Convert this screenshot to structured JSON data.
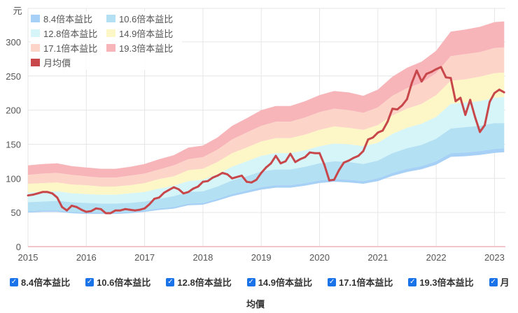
{
  "chart_data": {
    "type": "area",
    "y_unit": "元",
    "ylim": [
      0,
      350
    ],
    "yticks": [
      "0",
      "50",
      "100",
      "150",
      "200",
      "250",
      "300"
    ],
    "xticks": [
      "2015",
      "2016",
      "2017",
      "2018",
      "2019",
      "2020",
      "2021",
      "2022",
      "2023"
    ],
    "grid": true,
    "legend_position": "top-left",
    "band_dates": [
      "2015-01",
      "2015-04",
      "2015-07",
      "2015-10",
      "2016-01",
      "2016-04",
      "2016-07",
      "2016-10",
      "2017-01",
      "2017-04",
      "2017-07",
      "2017-10",
      "2018-01",
      "2018-04",
      "2018-07",
      "2018-10",
      "2019-01",
      "2019-04",
      "2019-07",
      "2019-10",
      "2020-01",
      "2020-04",
      "2020-07",
      "2020-10",
      "2021-01",
      "2021-04",
      "2021-07",
      "2021-10",
      "2022-01",
      "2022-04",
      "2022-07",
      "2022-10",
      "2023-01",
      "2023-03"
    ],
    "series": [
      {
        "name": "8.4倍本益比",
        "color": "#a6d0f5",
        "values": [
          52,
          53,
          53,
          51,
          50,
          50,
          50,
          51,
          53,
          56,
          58,
          63,
          64,
          70,
          77,
          82,
          87,
          90,
          90,
          93,
          97,
          99,
          98,
          96,
          100,
          108,
          114,
          118,
          125,
          137,
          138,
          140,
          143,
          144
        ]
      },
      {
        "name": "10.6倍本益比",
        "color": "#b3e0f2",
        "values": [
          65,
          66,
          67,
          65,
          64,
          63,
          63,
          64,
          66,
          70,
          74,
          80,
          81,
          88,
          97,
          103,
          110,
          113,
          113,
          117,
          122,
          125,
          124,
          121,
          126,
          137,
          144,
          149,
          158,
          173,
          175,
          177,
          181,
          181
        ]
      },
      {
        "name": "12.8倍本益比",
        "color": "#d5f5f8",
        "values": [
          79,
          80,
          81,
          78,
          77,
          76,
          76,
          78,
          80,
          85,
          89,
          96,
          98,
          106,
          117,
          125,
          133,
          137,
          137,
          141,
          147,
          151,
          150,
          147,
          152,
          165,
          174,
          180,
          190,
          209,
          211,
          213,
          218,
          219
        ]
      },
      {
        "name": "14.9倍本益比",
        "color": "#fdf6c6",
        "values": [
          92,
          93,
          94,
          91,
          90,
          88,
          88,
          90,
          93,
          99,
          103,
          112,
          114,
          124,
          137,
          145,
          154,
          159,
          159,
          164,
          171,
          176,
          174,
          171,
          178,
          192,
          202,
          209,
          222,
          243,
          245,
          249,
          254,
          255
        ]
      },
      {
        "name": "17.1倍本益比",
        "color": "#fcd4c8",
        "values": [
          105,
          107,
          108,
          105,
          103,
          101,
          101,
          104,
          107,
          113,
          119,
          128,
          131,
          142,
          157,
          167,
          177,
          183,
          183,
          189,
          197,
          202,
          200,
          196,
          204,
          221,
          232,
          240,
          254,
          279,
          282,
          285,
          291,
          292
        ]
      },
      {
        "name": "19.3倍本益比",
        "color": "#f7b4b9",
        "values": [
          119,
          121,
          122,
          118,
          116,
          114,
          114,
          117,
          121,
          128,
          134,
          145,
          148,
          160,
          177,
          188,
          200,
          206,
          206,
          213,
          222,
          228,
          226,
          221,
          230,
          249,
          262,
          271,
          287,
          315,
          318,
          322,
          329,
          330
        ]
      }
    ],
    "price": {
      "name": "月均價",
      "color": "#c8474a",
      "dates": [
        "2015-01",
        "2015-02",
        "2015-03",
        "2015-04",
        "2015-05",
        "2015-06",
        "2015-07",
        "2015-08",
        "2015-09",
        "2015-10",
        "2015-11",
        "2015-12",
        "2016-01",
        "2016-02",
        "2016-03",
        "2016-04",
        "2016-05",
        "2016-06",
        "2016-07",
        "2016-08",
        "2016-09",
        "2016-10",
        "2016-11",
        "2016-12",
        "2017-01",
        "2017-02",
        "2017-03",
        "2017-04",
        "2017-05",
        "2017-06",
        "2017-07",
        "2017-08",
        "2017-09",
        "2017-10",
        "2017-11",
        "2017-12",
        "2018-01",
        "2018-02",
        "2018-03",
        "2018-04",
        "2018-05",
        "2018-06",
        "2018-07",
        "2018-08",
        "2018-09",
        "2018-10",
        "2018-11",
        "2018-12",
        "2019-01",
        "2019-02",
        "2019-03",
        "2019-04",
        "2019-05",
        "2019-06",
        "2019-07",
        "2019-08",
        "2019-09",
        "2019-10",
        "2019-11",
        "2019-12",
        "2020-01",
        "2020-02",
        "2020-03",
        "2020-04",
        "2020-05",
        "2020-06",
        "2020-07",
        "2020-08",
        "2020-09",
        "2020-10",
        "2020-11",
        "2020-12",
        "2021-01",
        "2021-02",
        "2021-03",
        "2021-04",
        "2021-05",
        "2021-06",
        "2021-07",
        "2021-08",
        "2021-09",
        "2021-10",
        "2021-11",
        "2021-12",
        "2022-01",
        "2022-02",
        "2022-03",
        "2022-04",
        "2022-05",
        "2022-06",
        "2022-07",
        "2022-08",
        "2022-09",
        "2022-10",
        "2022-11",
        "2022-12",
        "2023-01",
        "2023-02",
        "2023-03"
      ],
      "values": [
        75,
        76,
        78,
        80,
        80,
        78,
        72,
        58,
        53,
        60,
        58,
        54,
        51,
        52,
        56,
        55,
        49,
        49,
        53,
        53,
        55,
        54,
        53,
        54,
        56,
        62,
        70,
        72,
        79,
        83,
        87,
        84,
        78,
        80,
        85,
        88,
        95,
        96,
        101,
        104,
        108,
        106,
        100,
        102,
        104,
        95,
        94,
        98,
        108,
        116,
        122,
        133,
        122,
        125,
        136,
        124,
        128,
        131,
        138,
        137,
        137,
        120,
        97,
        98,
        112,
        123,
        126,
        130,
        133,
        140,
        157,
        160,
        167,
        170,
        183,
        202,
        201,
        207,
        216,
        240,
        258,
        242,
        253,
        256,
        260,
        263,
        248,
        247,
        213,
        218,
        193,
        215,
        190,
        168,
        178,
        212,
        225,
        230,
        226
      ]
    }
  },
  "legend": {
    "items": [
      "8.4倍本益比",
      "10.6倍本益比",
      "12.8倍本益比",
      "14.9倍本益比",
      "17.1倍本益比",
      "19.3倍本益比",
      "月均價"
    ]
  },
  "toggles": {
    "items": [
      "8.4倍本益比",
      "10.6倍本益比",
      "12.8倍本益比",
      "14.9倍本益比",
      "17.1倍本益比",
      "19.3倍本益比",
      "月"
    ],
    "tail": "均價"
  }
}
